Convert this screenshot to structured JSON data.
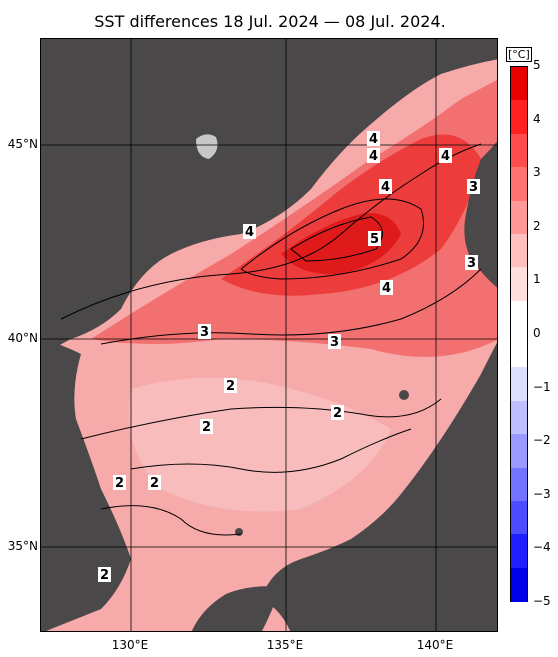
{
  "title": "SST differences 18 Jul. 2024 — 08 Jul. 2024.",
  "unit": "[°C]",
  "lat_labels": [
    "45°N",
    "40°N",
    "35°N"
  ],
  "lon_labels": [
    "130°E",
    "135°E",
    "140°E"
  ],
  "colorbar": {
    "ticks": [
      "5",
      "4",
      "3",
      "2",
      "1",
      "0",
      "−1",
      "−2",
      "−3",
      "−4",
      "−5"
    ],
    "colors": [
      "#e60000",
      "#ff2020",
      "#ff4d4d",
      "#ff7373",
      "#ff9999",
      "#ffbfbf",
      "#ffdede",
      "#ffffff",
      "#ffffff",
      "#dedeff",
      "#bfbfff",
      "#9999ff",
      "#7373ff",
      "#4d4dff",
      "#2020ff",
      "#0000e6"
    ]
  },
  "contour_labels": [
    {
      "text": "4",
      "id": "c4a"
    },
    {
      "text": "4",
      "id": "c4b"
    },
    {
      "text": "4",
      "id": "c4c"
    },
    {
      "text": "4",
      "id": "c4d"
    },
    {
      "text": "4",
      "id": "c4e"
    },
    {
      "text": "4",
      "id": "c4f"
    },
    {
      "text": "5",
      "id": "c5"
    },
    {
      "text": "3",
      "id": "c3a"
    },
    {
      "text": "3",
      "id": "c3b"
    },
    {
      "text": "3",
      "id": "c3c"
    },
    {
      "text": "3",
      "id": "c3d"
    },
    {
      "text": "2",
      "id": "c2a"
    },
    {
      "text": "2",
      "id": "c2b"
    },
    {
      "text": "2",
      "id": "c2c"
    },
    {
      "text": "2",
      "id": "c2d"
    },
    {
      "text": "2",
      "id": "c2e"
    },
    {
      "text": "2",
      "id": "c2f"
    }
  ],
  "colors": {
    "land": "#4a4848",
    "sea_base": "#f8b3b3",
    "sea_warm": "#f36060",
    "sea_hot": "#e21818",
    "grid": "#000000"
  }
}
